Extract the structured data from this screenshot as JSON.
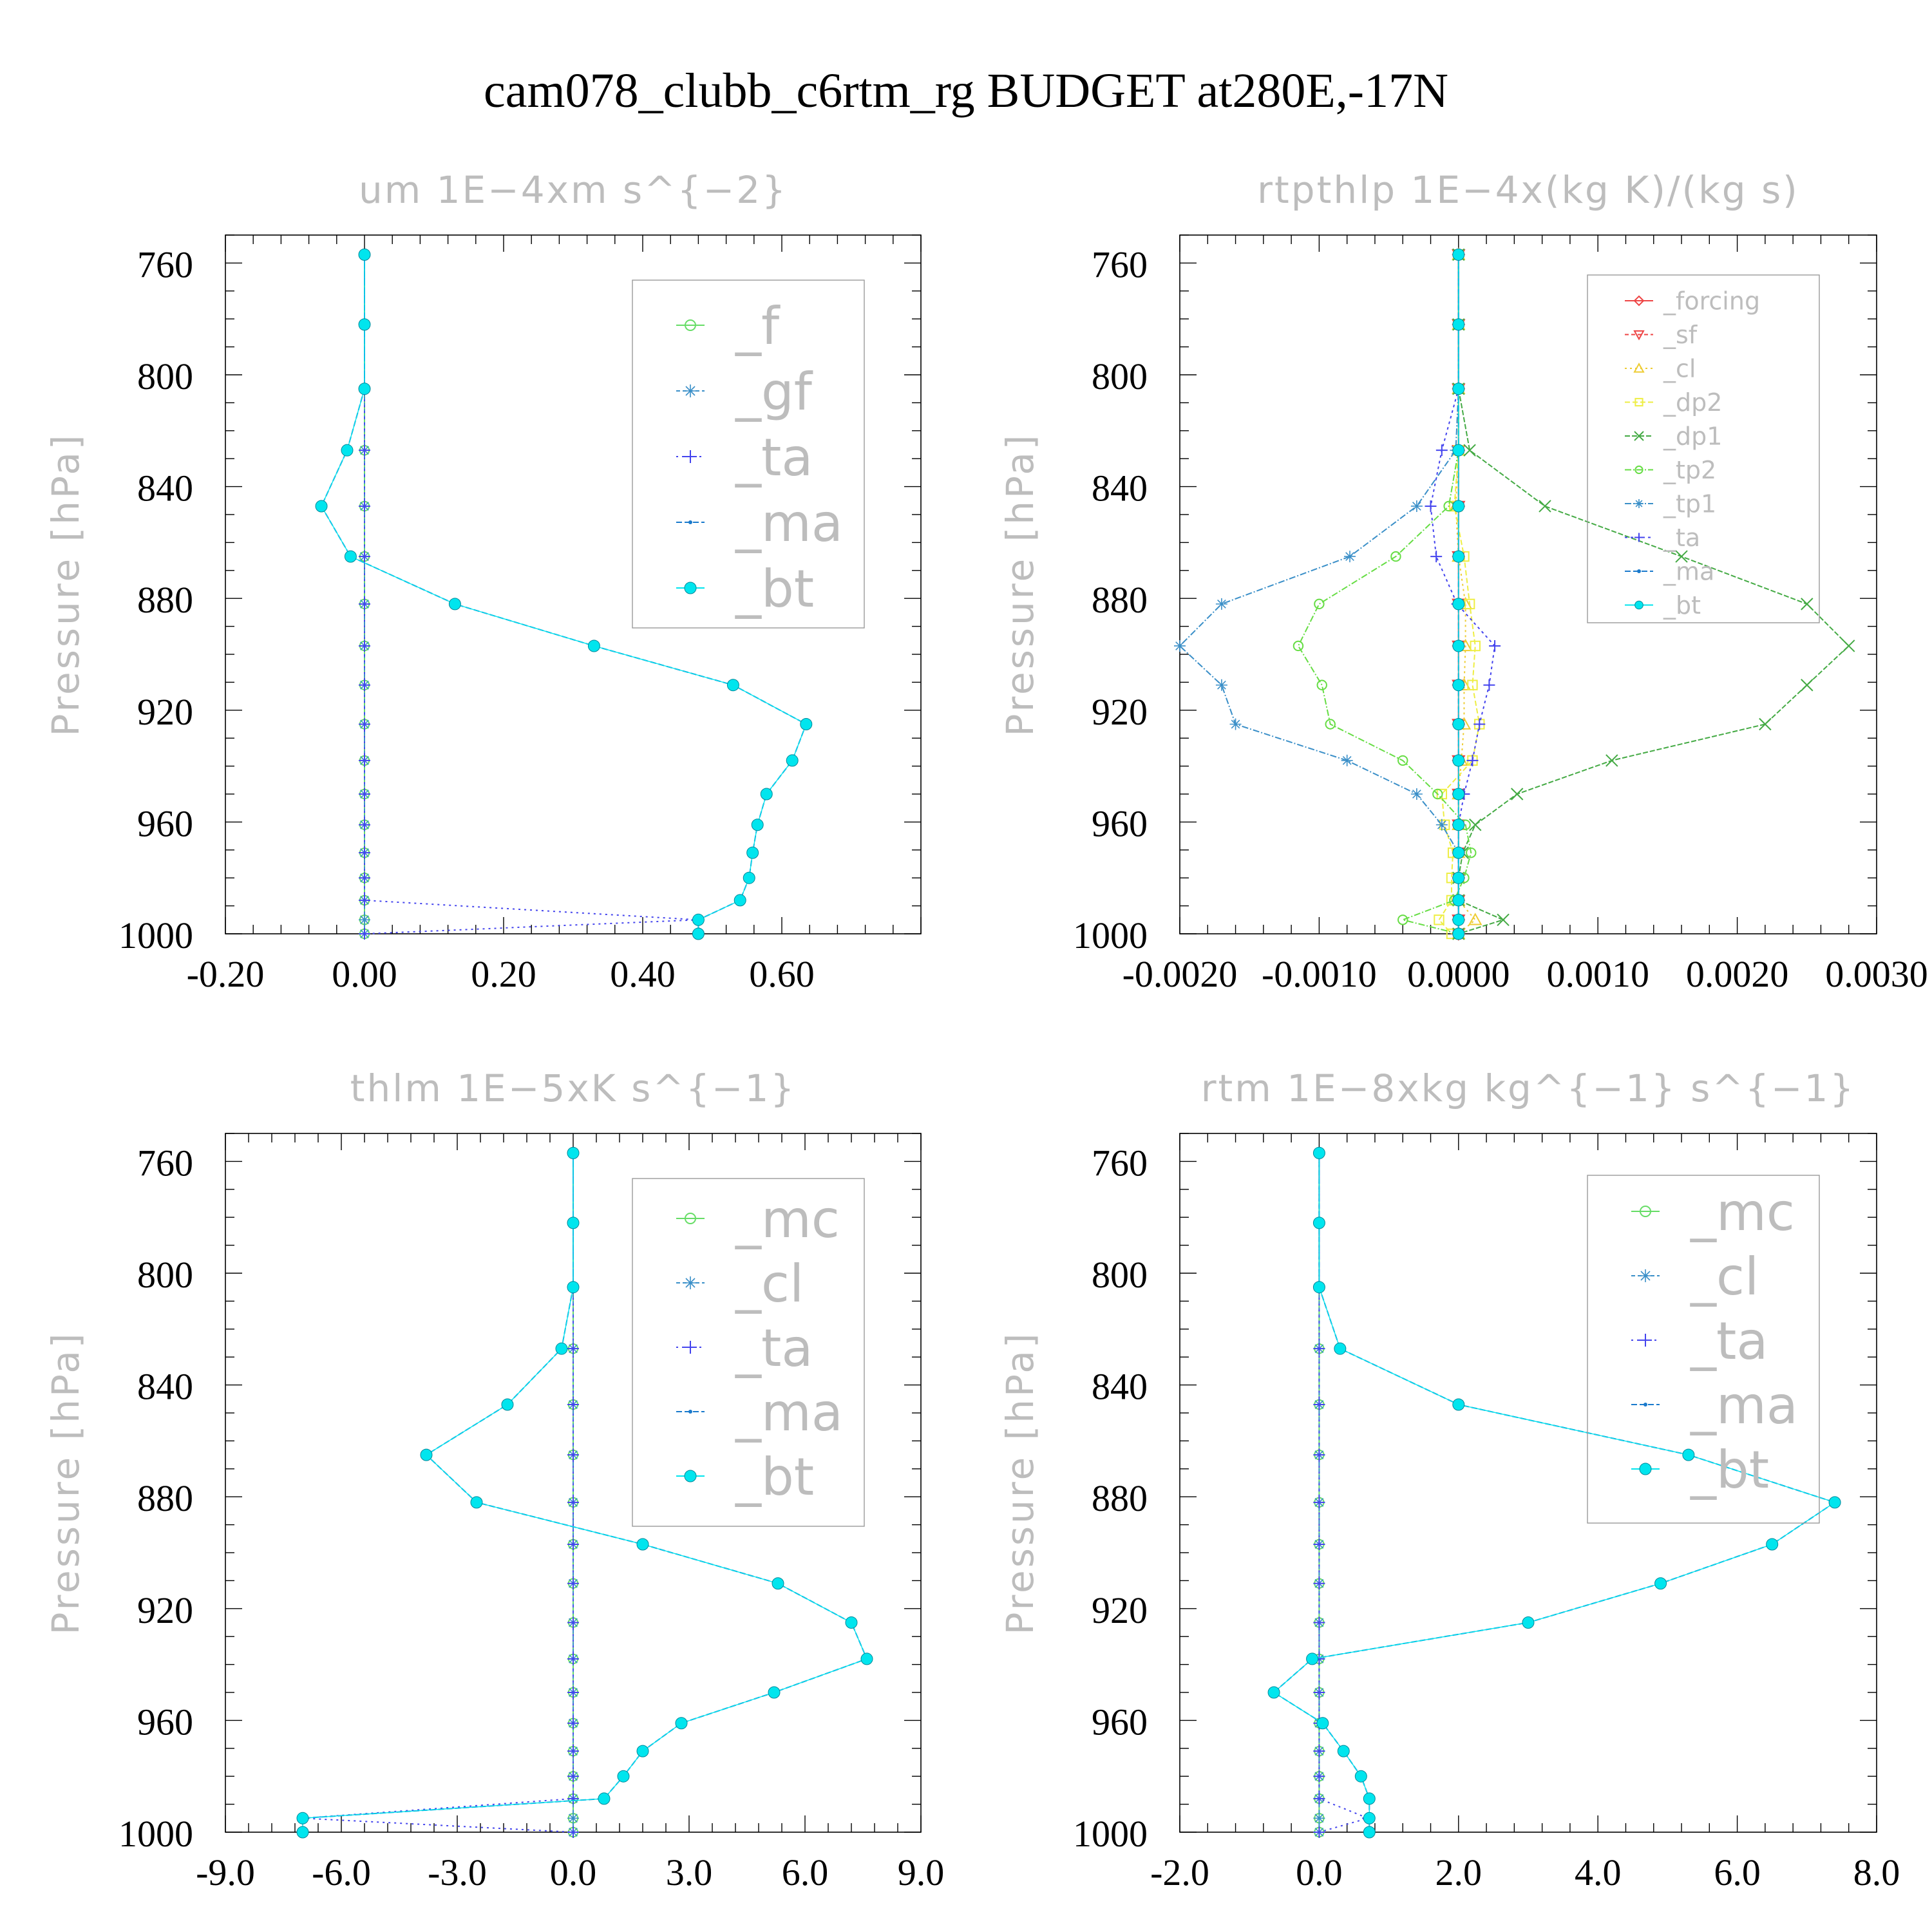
{
  "figure_title": "cam078_clubb_c6rtm_rg  BUDGET at280E,-17N",
  "chart_data": [
    {
      "type": "line",
      "title": "um   1E−4xm s^{−2}",
      "ylabel": "Pressure [hPa]",
      "y_axis": {
        "range": [
          1000,
          750
        ],
        "ticks": [
          760,
          800,
          840,
          880,
          920,
          960,
          1000
        ]
      },
      "x_axis": {
        "range": [
          -0.2,
          0.8
        ],
        "ticks": [
          -0.2,
          0.0,
          0.2,
          0.4,
          0.6
        ],
        "tick_labels": [
          "-0.20",
          "0.00",
          "0.20",
          "0.40",
          "0.60"
        ]
      },
      "levels": [
        757,
        782,
        805,
        827,
        847,
        865,
        882,
        897,
        911,
        925,
        938,
        950,
        961,
        971,
        980,
        988,
        995,
        1000
      ],
      "legend": {
        "position": "top-right",
        "entries": [
          "_f",
          "_gf",
          "_ta",
          "_ma",
          "_bt"
        ]
      },
      "series": [
        {
          "name": "_f",
          "color": "#66dd66",
          "marker": "circle",
          "dash": "none",
          "values": [
            0,
            0,
            0,
            0,
            0,
            0,
            0,
            0,
            0,
            0,
            0,
            0,
            0,
            0,
            0,
            0,
            0,
            0
          ]
        },
        {
          "name": "_gf",
          "color": "#3a8fc8",
          "marker": "star",
          "dash": "6,4",
          "values": [
            0,
            0,
            0,
            0,
            0,
            0,
            0,
            0,
            0,
            0,
            0,
            0,
            0,
            0,
            0,
            0,
            0,
            0
          ]
        },
        {
          "name": "_ta",
          "color": "#4444ee",
          "marker": "plus",
          "dash": "3,6",
          "values": [
            0,
            0,
            0,
            0,
            0,
            0,
            0,
            0,
            0,
            0,
            0,
            0,
            0,
            0,
            0,
            0,
            0.48,
            0
          ]
        },
        {
          "name": "_ma",
          "color": "#1a7acc",
          "marker": "dot",
          "dash": "9,4",
          "values": [
            0,
            0,
            0,
            -0.025,
            -0.062,
            -0.02,
            0.13,
            0.33,
            0.53,
            0.635,
            0.615,
            0.578,
            0.565,
            0.558,
            0.553,
            0.54,
            0.48,
            0.48
          ]
        },
        {
          "name": "_bt",
          "color": "#00e5ee",
          "marker": "filled-circle",
          "dash": "none",
          "values": [
            0,
            0,
            0,
            -0.025,
            -0.062,
            -0.02,
            0.13,
            0.33,
            0.53,
            0.635,
            0.615,
            0.578,
            0.565,
            0.558,
            0.553,
            0.54,
            0.48,
            0.48
          ]
        }
      ]
    },
    {
      "type": "line",
      "title": "rtpthlp   1E−4x(kg K)/(kg s)",
      "ylabel": "Pressure [hPa]",
      "y_axis": {
        "range": [
          1000,
          750
        ],
        "ticks": [
          760,
          800,
          840,
          880,
          920,
          960,
          1000
        ]
      },
      "x_axis": {
        "range": [
          -0.002,
          0.003
        ],
        "ticks": [
          -0.002,
          -0.001,
          0.0,
          0.001,
          0.002,
          0.003
        ],
        "tick_labels": [
          "-0.0020",
          "-0.0010",
          "0.0000",
          "0.0010",
          "0.0020",
          "0.0030"
        ]
      },
      "levels": [
        757,
        782,
        805,
        827,
        847,
        865,
        882,
        897,
        911,
        925,
        938,
        950,
        961,
        971,
        980,
        988,
        995,
        1000
      ],
      "legend": {
        "position": "top-right",
        "entries": [
          "_forcing",
          "_sf",
          "_cl",
          "_dp2",
          "_dp1",
          "_tp2",
          "_tp1",
          "_ta",
          "_ma",
          "_bt"
        ]
      },
      "series": [
        {
          "name": "_forcing",
          "color": "#ee4444",
          "marker": "diamond",
          "dash": "none",
          "values": [
            0,
            0,
            0,
            0,
            0,
            0,
            0,
            0,
            0,
            0,
            0,
            0,
            0,
            0,
            0,
            0,
            0,
            0
          ]
        },
        {
          "name": "_sf",
          "color": "#ee4444",
          "marker": "triangle-down",
          "dash": "6,4",
          "values": [
            0,
            0,
            0,
            0,
            0,
            0,
            0,
            0,
            0,
            0,
            0,
            0,
            0,
            0,
            0,
            0,
            0,
            0
          ]
        },
        {
          "name": "_cl",
          "color": "#eecc33",
          "marker": "triangle",
          "dash": "3,5",
          "values": [
            0,
            0,
            0,
            0,
            -2e-05,
            0,
            5e-05,
            5e-05,
            4e-05,
            4e-05,
            2e-05,
            0,
            0,
            0,
            0,
            0,
            0.00012,
            0
          ]
        },
        {
          "name": "_dp2",
          "color": "#eeee44",
          "marker": "square",
          "dash": "8,4",
          "values": [
            0,
            0,
            0,
            0,
            -3e-05,
            4e-05,
            8e-05,
            0.00012,
            0.0001,
            0.00015,
            0.0001,
            -0.00012,
            -0.0001,
            -4e-05,
            -5e-05,
            -5e-05,
            -0.00014,
            -5e-05
          ]
        },
        {
          "name": "_dp1",
          "color": "#44aa44",
          "marker": "x",
          "dash": "8,3",
          "values": [
            0,
            0,
            0,
            8e-05,
            0.00062,
            0.0016,
            0.0025,
            0.0028,
            0.0025,
            0.0022,
            0.0011,
            0.00042,
            0.00012,
            3e-05,
            0,
            0,
            0.00032,
            0
          ]
        },
        {
          "name": "_tp2",
          "color": "#66dd44",
          "marker": "circle",
          "dash": "10,3,2,3",
          "values": [
            0,
            0,
            0,
            0,
            -7e-05,
            -0.00045,
            -0.001,
            -0.00115,
            -0.00098,
            -0.00092,
            -0.0004,
            -0.00015,
            5e-05,
            9e-05,
            4e-05,
            -3e-05,
            -0.0004,
            0
          ]
        },
        {
          "name": "_tp1",
          "color": "#3a8fc8",
          "marker": "star",
          "dash": "10,3,2,3",
          "values": [
            0,
            0,
            0,
            -2e-05,
            -0.0003,
            -0.00078,
            -0.0017,
            -0.002,
            -0.0017,
            -0.0016,
            -0.0008,
            -0.0003,
            -0.00012,
            0,
            0,
            0,
            0,
            0
          ]
        },
        {
          "name": "_ta",
          "color": "#4444ee",
          "marker": "plus",
          "dash": "4,5",
          "values": [
            0,
            0,
            0,
            -0.00012,
            -0.0002,
            -0.00016,
            -1e-05,
            0.00026,
            0.00022,
            0.00015,
            0.0001,
            4e-05,
            0,
            0,
            0,
            0,
            0,
            0
          ]
        },
        {
          "name": "_ma",
          "color": "#1a7acc",
          "marker": "dot",
          "dash": "9,4",
          "values": [
            0,
            0,
            0,
            0,
            0,
            0,
            0,
            0,
            0,
            0,
            0,
            0,
            0,
            0,
            0,
            0,
            0,
            0
          ]
        },
        {
          "name": "_bt",
          "color": "#00e5ee",
          "marker": "filled-circle",
          "dash": "none",
          "values": [
            0,
            0,
            0,
            0,
            0,
            0,
            0,
            0,
            0,
            0,
            0,
            0,
            0,
            0,
            0,
            0,
            0,
            0
          ]
        }
      ]
    },
    {
      "type": "line",
      "title": "thlm   1E−5xK s^{−1}",
      "ylabel": "Pressure [hPa]",
      "y_axis": {
        "range": [
          1000,
          750
        ],
        "ticks": [
          760,
          800,
          840,
          880,
          920,
          960,
          1000
        ]
      },
      "x_axis": {
        "range": [
          -9,
          9
        ],
        "ticks": [
          -9,
          -6,
          -3,
          0,
          3,
          6,
          9
        ],
        "tick_labels": [
          "-9.0",
          "-6.0",
          "-3.0",
          "0.0",
          "3.0",
          "6.0",
          "9.0"
        ]
      },
      "levels": [
        757,
        782,
        805,
        827,
        847,
        865,
        882,
        897,
        911,
        925,
        938,
        950,
        961,
        971,
        980,
        988,
        995,
        1000
      ],
      "legend": {
        "position": "top-right",
        "entries": [
          "_mc",
          "_cl",
          "_ta",
          "_ma",
          "_bt"
        ]
      },
      "series": [
        {
          "name": "_mc",
          "color": "#66dd66",
          "marker": "circle",
          "dash": "none",
          "values": [
            0,
            0,
            0,
            0,
            0,
            0,
            0,
            0,
            0,
            0,
            0,
            0,
            0,
            0,
            0,
            0,
            0,
            0
          ]
        },
        {
          "name": "_cl",
          "color": "#3a8fc8",
          "marker": "star",
          "dash": "6,4",
          "values": [
            0,
            0,
            0,
            0,
            0,
            0,
            0,
            0,
            0,
            0,
            0,
            0,
            0,
            0,
            0,
            0,
            0,
            0
          ]
        },
        {
          "name": "_ta",
          "color": "#4444ee",
          "marker": "plus",
          "dash": "3,6",
          "values": [
            0,
            0,
            0,
            0,
            0,
            0,
            0,
            0,
            0,
            0,
            0,
            0,
            0,
            0,
            0,
            0,
            -7.0,
            0
          ]
        },
        {
          "name": "_ma",
          "color": "#1a7acc",
          "marker": "dot",
          "dash": "9,4",
          "values": [
            0,
            0,
            0,
            -0.3,
            -1.7,
            -3.8,
            -2.5,
            1.8,
            5.3,
            7.2,
            7.6,
            5.2,
            2.8,
            1.8,
            1.3,
            0.8,
            -7.0,
            -7.0
          ]
        },
        {
          "name": "_bt",
          "color": "#00e5ee",
          "marker": "filled-circle",
          "dash": "none",
          "values": [
            0,
            0,
            0,
            -0.3,
            -1.7,
            -3.8,
            -2.5,
            1.8,
            5.3,
            7.2,
            7.6,
            5.2,
            2.8,
            1.8,
            1.3,
            0.8,
            -7.0,
            -7.0
          ]
        }
      ]
    },
    {
      "type": "line",
      "title": "rtm   1E−8xkg kg^{−1} s^{−1}",
      "ylabel": "Pressure [hPa]",
      "y_axis": {
        "range": [
          1000,
          750
        ],
        "ticks": [
          760,
          800,
          840,
          880,
          920,
          960,
          1000
        ]
      },
      "x_axis": {
        "range": [
          -2,
          8
        ],
        "ticks": [
          -2,
          0,
          2,
          4,
          6,
          8
        ],
        "tick_labels": [
          "-2.0",
          "0.0",
          "2.0",
          "4.0",
          "6.0",
          "8.0"
        ]
      },
      "levels": [
        757,
        782,
        805,
        827,
        847,
        865,
        882,
        897,
        911,
        925,
        938,
        950,
        961,
        971,
        980,
        988,
        995,
        1000
      ],
      "legend": {
        "position": "top-right",
        "entries": [
          "_mc",
          "_cl",
          "_ta",
          "_ma",
          "_bt"
        ]
      },
      "series": [
        {
          "name": "_mc",
          "color": "#66dd66",
          "marker": "circle",
          "dash": "none",
          "values": [
            0,
            0,
            0,
            0,
            0,
            0,
            0,
            0,
            0,
            0,
            0,
            0,
            0,
            0,
            0,
            0,
            0,
            0
          ]
        },
        {
          "name": "_cl",
          "color": "#3a8fc8",
          "marker": "star",
          "dash": "6,4",
          "values": [
            0,
            0,
            0,
            0,
            0,
            0,
            0,
            0,
            0,
            0,
            0,
            0,
            0,
            0,
            0,
            0,
            0,
            0
          ]
        },
        {
          "name": "_ta",
          "color": "#4444ee",
          "marker": "plus",
          "dash": "3,6",
          "values": [
            0,
            0,
            0,
            0,
            0,
            0,
            0,
            0,
            0,
            0,
            0,
            0,
            0,
            0,
            0,
            0,
            0.7,
            0
          ]
        },
        {
          "name": "_ma",
          "color": "#1a7acc",
          "marker": "dot",
          "dash": "9,4",
          "values": [
            0,
            0,
            0,
            0.3,
            2.0,
            5.3,
            7.4,
            6.5,
            4.9,
            3.0,
            -0.1,
            -0.65,
            0.05,
            0.35,
            0.6,
            0.72,
            0.72,
            0.72
          ]
        },
        {
          "name": "_bt",
          "color": "#00e5ee",
          "marker": "filled-circle",
          "dash": "none",
          "values": [
            0,
            0,
            0,
            0.3,
            2.0,
            5.3,
            7.4,
            6.5,
            4.9,
            3.0,
            -0.1,
            -0.65,
            0.05,
            0.35,
            0.6,
            0.72,
            0.72,
            0.72
          ]
        }
      ]
    }
  ]
}
